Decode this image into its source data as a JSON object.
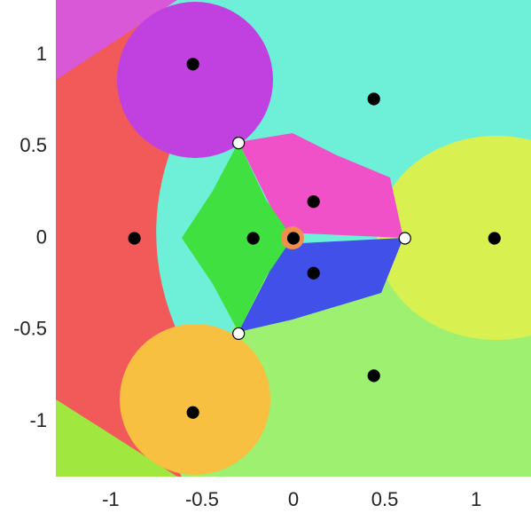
{
  "chart_data": {
    "type": "scatter",
    "xlim": [
      -1.3,
      1.3
    ],
    "ylim": [
      -1.3,
      1.3
    ],
    "xticks": [
      -1,
      -0.5,
      0,
      0.5,
      1
    ],
    "yticks": [
      -1,
      -0.5,
      0,
      0.5,
      1
    ],
    "series": [
      {
        "color": "#000000",
        "edgecolor": "#000000",
        "x": [
          -0.55,
          0.44,
          0.11,
          -0.87,
          -0.22,
          0,
          1.1,
          0.11,
          -0.55,
          0.44
        ],
        "values": [
          0.95,
          0.76,
          0.2,
          0,
          0,
          0,
          0,
          -0.19,
          -0.95,
          -0.75
        ]
      },
      {
        "color": "#ffffff",
        "edgecolor": "#000000",
        "x": [
          -0.3,
          0.61,
          -0.3
        ],
        "values": [
          0.52,
          0,
          -0.52
        ]
      }
    ]
  }
}
